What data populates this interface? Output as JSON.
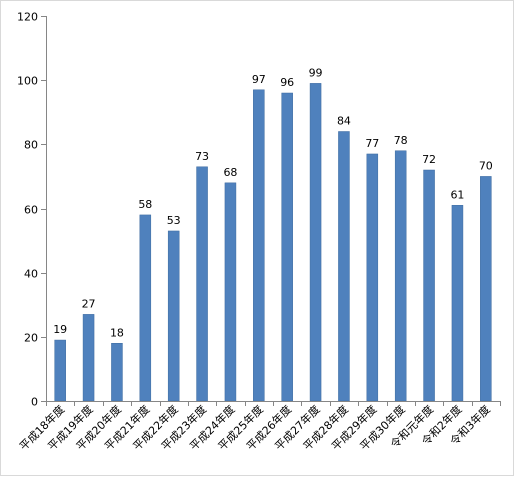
{
  "chart_data": {
    "type": "bar",
    "categories": [
      "平成18年度",
      "平成19年度",
      "平成20年度",
      "平成21年度",
      "平成22年度",
      "平成23年度",
      "平成24年度",
      "平成25年度",
      "平成26年度",
      "平成27年度",
      "平成28年度",
      "平成29年度",
      "平成30年度",
      "令和元年度",
      "令和2年度",
      "令和3年度"
    ],
    "values": [
      19,
      27,
      18,
      58,
      53,
      73,
      68,
      97,
      96,
      99,
      84,
      77,
      78,
      72,
      61,
      70
    ],
    "ylim": [
      0,
      120
    ],
    "yticks": [
      0,
      20,
      40,
      60,
      80,
      100,
      120
    ],
    "grid": false,
    "legend": "none",
    "data_labels": true,
    "colors": {
      "bar": "#4f81bd",
      "bar_edge": "#3c6a9f",
      "axis": "#868686"
    }
  }
}
